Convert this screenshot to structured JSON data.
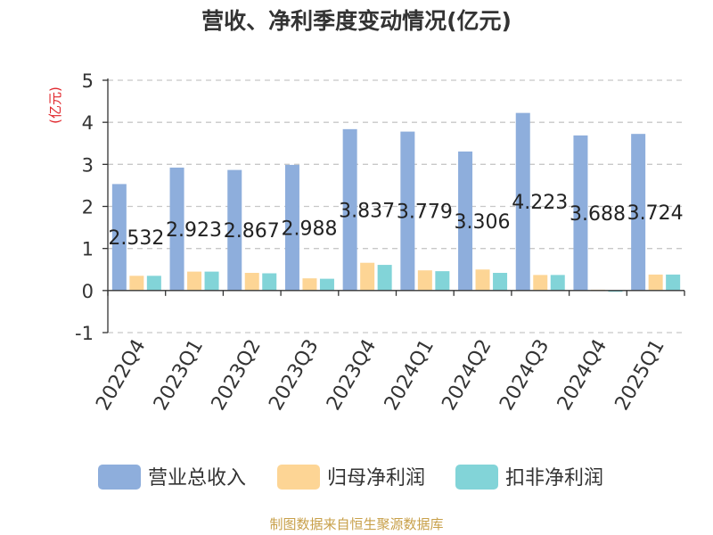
{
  "title": "营收、净利季度变动情况(亿元)",
  "ylabel": "(亿元)",
  "source": "制图数据来自恒生聚源数据库",
  "colors": {
    "revenue": "#8eaedc",
    "net_profit": "#fdd595",
    "deducted_profit": "#82d4d8",
    "ylabel": "#e0242a",
    "source": "#c8a04a",
    "grid": "#c8c8c8",
    "axis": "#333333",
    "text": "#333333"
  },
  "chart_data": {
    "type": "bar",
    "categories": [
      "2022Q4",
      "2023Q1",
      "2023Q2",
      "2023Q3",
      "2023Q4",
      "2024Q1",
      "2024Q2",
      "2024Q3",
      "2024Q4",
      "2025Q1"
    ],
    "series": [
      {
        "name": "营业总收入",
        "values": [
          2.532,
          2.923,
          2.867,
          2.988,
          3.837,
          3.779,
          3.306,
          4.223,
          3.688,
          3.724
        ],
        "data_labels": [
          "2.532",
          "2.923",
          "2.867",
          "2.988",
          "3.837",
          "3.779",
          "3.306",
          "4.223",
          "3.688",
          "3.724"
        ]
      },
      {
        "name": "归母净利润",
        "values": [
          0.35,
          0.45,
          0.42,
          0.29,
          0.66,
          0.48,
          0.5,
          0.37,
          0.02,
          0.38
        ]
      },
      {
        "name": "扣非净利润",
        "values": [
          0.35,
          0.45,
          0.41,
          0.28,
          0.61,
          0.46,
          0.42,
          0.37,
          -0.03,
          0.38
        ]
      }
    ],
    "ylim": [
      -1,
      5
    ],
    "yticks": [
      "-1",
      "0",
      "1",
      "2",
      "3",
      "4",
      "5"
    ],
    "ytick_values": [
      -1,
      0,
      1,
      2,
      3,
      4,
      5
    ],
    "grid": true,
    "legend": "bottom"
  }
}
